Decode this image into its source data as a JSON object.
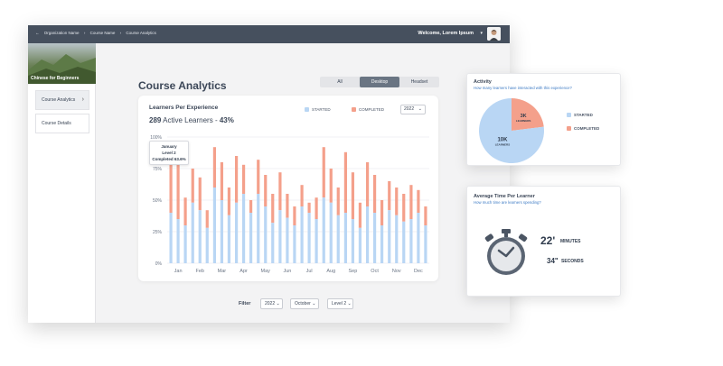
{
  "colors": {
    "topbar": "#46505e",
    "started": "#b9d6f4",
    "completed": "#f4a08b",
    "accent_link": "#3d7bc4"
  },
  "header": {
    "breadcrumb": [
      "Organization Name",
      "Course Name",
      "Course Analytics"
    ],
    "welcome": "Welcome, Lorem Ipsum",
    "avatar_icon": "user-photo"
  },
  "sidebar": {
    "course_title": "Chinese for Beginners",
    "items": [
      {
        "label": "Course Analytics",
        "icon": "chevron-right-icon"
      },
      {
        "label": "Course Details"
      }
    ]
  },
  "main": {
    "title": "Course Analytics",
    "tabs": [
      {
        "label": "All",
        "selected": false
      },
      {
        "label": "Desktop",
        "selected": true
      },
      {
        "label": "Headset",
        "selected": false
      }
    ],
    "card_title": "Learners Per Experience",
    "active_count": "289",
    "active_label": "Active Learners -",
    "active_pct": "43%",
    "legend": {
      "started": "STARTED",
      "completed": "COMPLETED"
    },
    "year_select": "2022",
    "tooltip": {
      "line1": "January",
      "line2": "Level 2",
      "line3": "Completed 63.6%"
    }
  },
  "filter": {
    "label": "Filter",
    "year": "2022",
    "month": "October",
    "level": "Level 2"
  },
  "activity": {
    "title": "Activity",
    "subtitle": "How many learners have interacted with this experience?",
    "slices": [
      {
        "label": "10K",
        "sublabel": "LEARNERS",
        "value": 10
      },
      {
        "label": "3K",
        "sublabel": "LEARNERS",
        "value": 3
      }
    ],
    "legend": {
      "started": "STARTED",
      "completed": "COMPLETED"
    }
  },
  "time": {
    "title": "Average Time Per Learner",
    "subtitle": "How much time are learners spending?",
    "minutes": "22'",
    "minutes_unit": "MINUTES",
    "seconds": "34\"",
    "seconds_unit": "SECONDS",
    "icon": "stopwatch-icon"
  },
  "chart_data": {
    "type": "bar",
    "title": "Learners Per Experience",
    "categories": [
      "Jan",
      "Feb",
      "Mar",
      "Apr",
      "May",
      "Jun",
      "Jul",
      "Aug",
      "Sep",
      "Oct",
      "Nov",
      "Dec"
    ],
    "yticks": [
      "0%",
      "25%",
      "50%",
      "75%",
      "100%"
    ],
    "ylim": [
      0,
      100
    ],
    "legend": "top",
    "series": [
      {
        "name": "STARTED",
        "values": [
          [
            40,
            35,
            30
          ],
          [
            48,
            42,
            28
          ],
          [
            60,
            50,
            38
          ],
          [
            48,
            55,
            40
          ],
          [
            55,
            45,
            32
          ],
          [
            42,
            36,
            30
          ],
          [
            45,
            40,
            35
          ],
          [
            52,
            48,
            38
          ],
          [
            40,
            35,
            28
          ],
          [
            45,
            40,
            30
          ],
          [
            42,
            38,
            33
          ],
          [
            35,
            40,
            30
          ]
        ]
      },
      {
        "name": "COMPLETED",
        "values": [
          [
            92,
            78,
            52
          ],
          [
            75,
            68,
            42
          ],
          [
            92,
            80,
            60
          ],
          [
            85,
            78,
            50
          ],
          [
            82,
            70,
            55
          ],
          [
            72,
            55,
            45
          ],
          [
            62,
            48,
            52
          ],
          [
            92,
            75,
            60
          ],
          [
            88,
            72,
            48
          ],
          [
            80,
            70,
            50
          ],
          [
            65,
            60,
            55
          ],
          [
            62,
            58,
            45
          ]
        ]
      }
    ]
  }
}
